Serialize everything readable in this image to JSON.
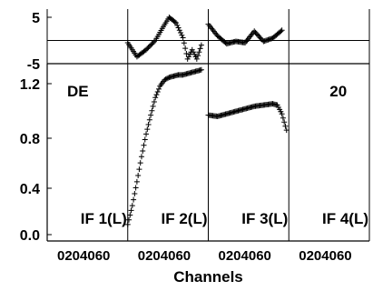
{
  "chart_data": {
    "type": "scatter",
    "xlabel": "Channels",
    "ylabel": "",
    "x_ticks": [
      "0",
      "20",
      "40",
      "60"
    ],
    "top_strip": {
      "yticks": [
        "5",
        "-5"
      ],
      "ylim": [
        -5,
        5
      ],
      "reference_y": 0
    },
    "main": {
      "yticks": [
        "1.2",
        "0.8",
        "0.4",
        "0.0"
      ],
      "ylim": [
        -0.02,
        1.32
      ]
    },
    "annotations": [
      "DE",
      "20"
    ],
    "panels": [
      {
        "label": "IF 1(L)",
        "top": [],
        "main": []
      },
      {
        "label": "IF 2(L)",
        "top": [
          [
            0,
            -0.5
          ],
          [
            8,
            -3.5
          ],
          [
            16,
            -2
          ],
          [
            24,
            0
          ],
          [
            30,
            2.6
          ],
          [
            36,
            5.0
          ],
          [
            42,
            3.8
          ],
          [
            48,
            0.6
          ],
          [
            52,
            -4.0
          ],
          [
            56,
            -2.0
          ],
          [
            60,
            -4.0
          ],
          [
            64,
            -1.0
          ]
        ],
        "main": [
          [
            0,
            0.08
          ],
          [
            4,
            0.23
          ],
          [
            8,
            0.42
          ],
          [
            12,
            0.62
          ],
          [
            16,
            0.8
          ],
          [
            20,
            0.95
          ],
          [
            24,
            1.09
          ],
          [
            28,
            1.18
          ],
          [
            32,
            1.23
          ],
          [
            36,
            1.25
          ],
          [
            40,
            1.26
          ],
          [
            44,
            1.27
          ],
          [
            48,
            1.27
          ],
          [
            52,
            1.28
          ],
          [
            56,
            1.29
          ],
          [
            60,
            1.3
          ],
          [
            64,
            1.31
          ]
        ]
      },
      {
        "label": "IF 3(L)",
        "top": [
          [
            0,
            3.5
          ],
          [
            8,
            1.0
          ],
          [
            16,
            -0.7
          ],
          [
            24,
            -0.2
          ],
          [
            32,
            -0.5
          ],
          [
            40,
            2.0
          ],
          [
            48,
            -0.2
          ],
          [
            56,
            0.5
          ],
          [
            64,
            2.2
          ]
        ],
        "main": [
          [
            0,
            0.95
          ],
          [
            8,
            0.94
          ],
          [
            16,
            0.96
          ],
          [
            24,
            0.98
          ],
          [
            32,
            1.0
          ],
          [
            40,
            1.02
          ],
          [
            48,
            1.03
          ],
          [
            56,
            1.04
          ],
          [
            60,
            1.03
          ],
          [
            64,
            0.96
          ],
          [
            68,
            0.83
          ]
        ]
      },
      {
        "label": "IF 4(L)",
        "top": [],
        "main": []
      }
    ]
  }
}
